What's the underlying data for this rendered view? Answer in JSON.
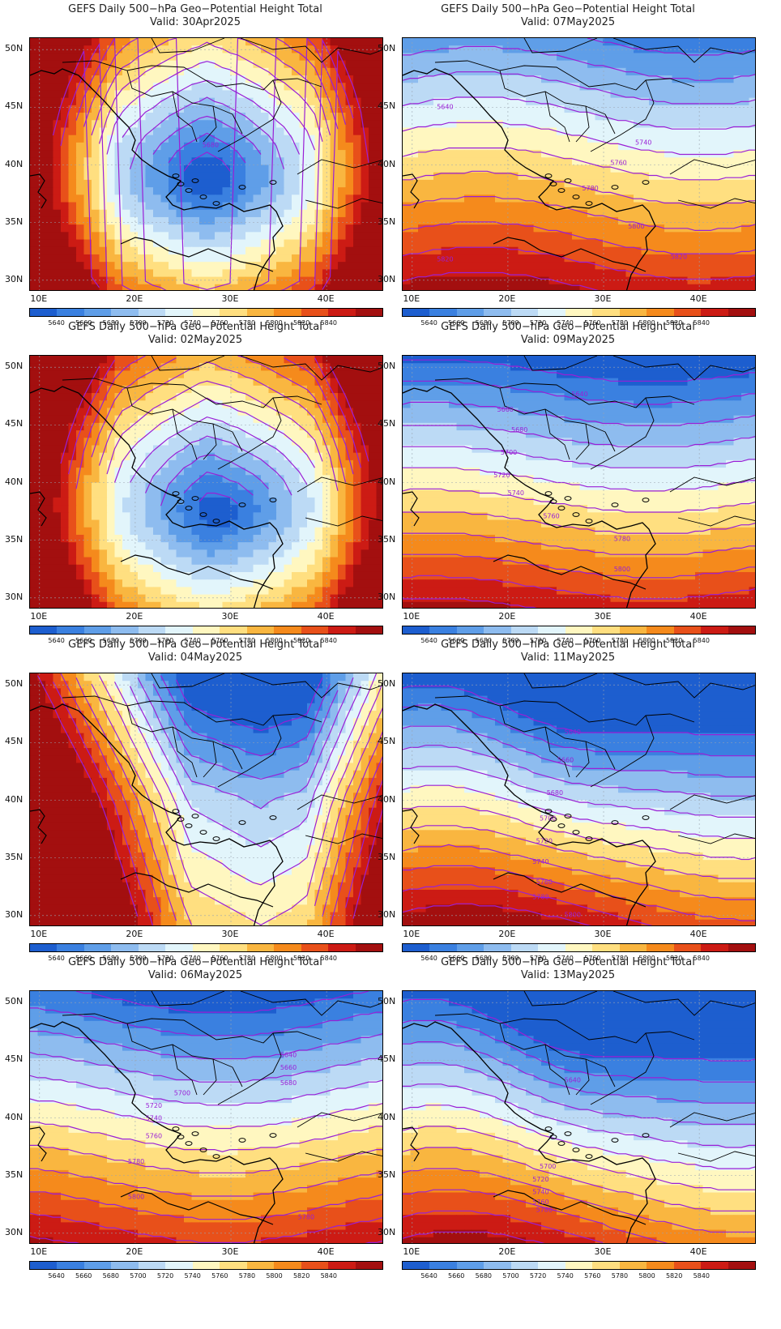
{
  "title": "GEFS Daily 500−hPa Geo−Potential Height Total",
  "lat_labels": [
    "50N",
    "45N",
    "40N",
    "35N",
    "30N"
  ],
  "lon_labels": [
    "10E",
    "20E",
    "30E",
    "40E"
  ],
  "colorbar": {
    "labels": [
      "5640",
      "5660",
      "5680",
      "5700",
      "5720",
      "5740",
      "5760",
      "5780",
      "5800",
      "5820",
      "5840"
    ],
    "colors": [
      "#1d5ecf",
      "#3a80e0",
      "#5f9ee8",
      "#8ebcef",
      "#bcdaf5",
      "#e2f5fb",
      "#fff7c0",
      "#ffdf80",
      "#f9b640",
      "#f58a1c",
      "#e8501a",
      "#cc1b14",
      "#a30f0f"
    ]
  },
  "chart_data": [
    {
      "type": "heatmap",
      "valid": "Valid: 30Apr2025",
      "contour_labels": [
        "5680"
      ]
    },
    {
      "type": "heatmap",
      "valid": "Valid: 07May2025",
      "contour_labels": [
        "5640",
        "5740",
        "5760",
        "5780",
        "5800",
        "5820",
        "5820"
      ]
    },
    {
      "type": "heatmap",
      "valid": "Valid: 02May2025",
      "contour_labels": []
    },
    {
      "type": "heatmap",
      "valid": "Valid: 09May2025",
      "contour_labels": [
        "5640",
        "5660",
        "5680",
        "5700",
        "5720",
        "5740",
        "5760",
        "5780",
        "5800"
      ]
    },
    {
      "type": "heatmap",
      "valid": "Valid: 04May2025",
      "contour_labels": []
    },
    {
      "type": "heatmap",
      "valid": "Valid: 11May2025",
      "contour_labels": [
        "5640",
        "5660",
        "5680",
        "5700",
        "5720",
        "5740",
        "5760",
        "5780",
        "5800"
      ]
    },
    {
      "type": "heatmap",
      "valid": "Valid: 06May2025",
      "contour_labels": [
        "5640",
        "5660",
        "5680",
        "5700",
        "5720",
        "5740",
        "5760",
        "5780",
        "5800",
        "5780"
      ]
    },
    {
      "type": "heatmap",
      "valid": "Valid: 13May2025",
      "contour_labels": [
        "5640",
        "5700",
        "5720",
        "5740",
        "5760",
        "5780"
      ]
    }
  ]
}
